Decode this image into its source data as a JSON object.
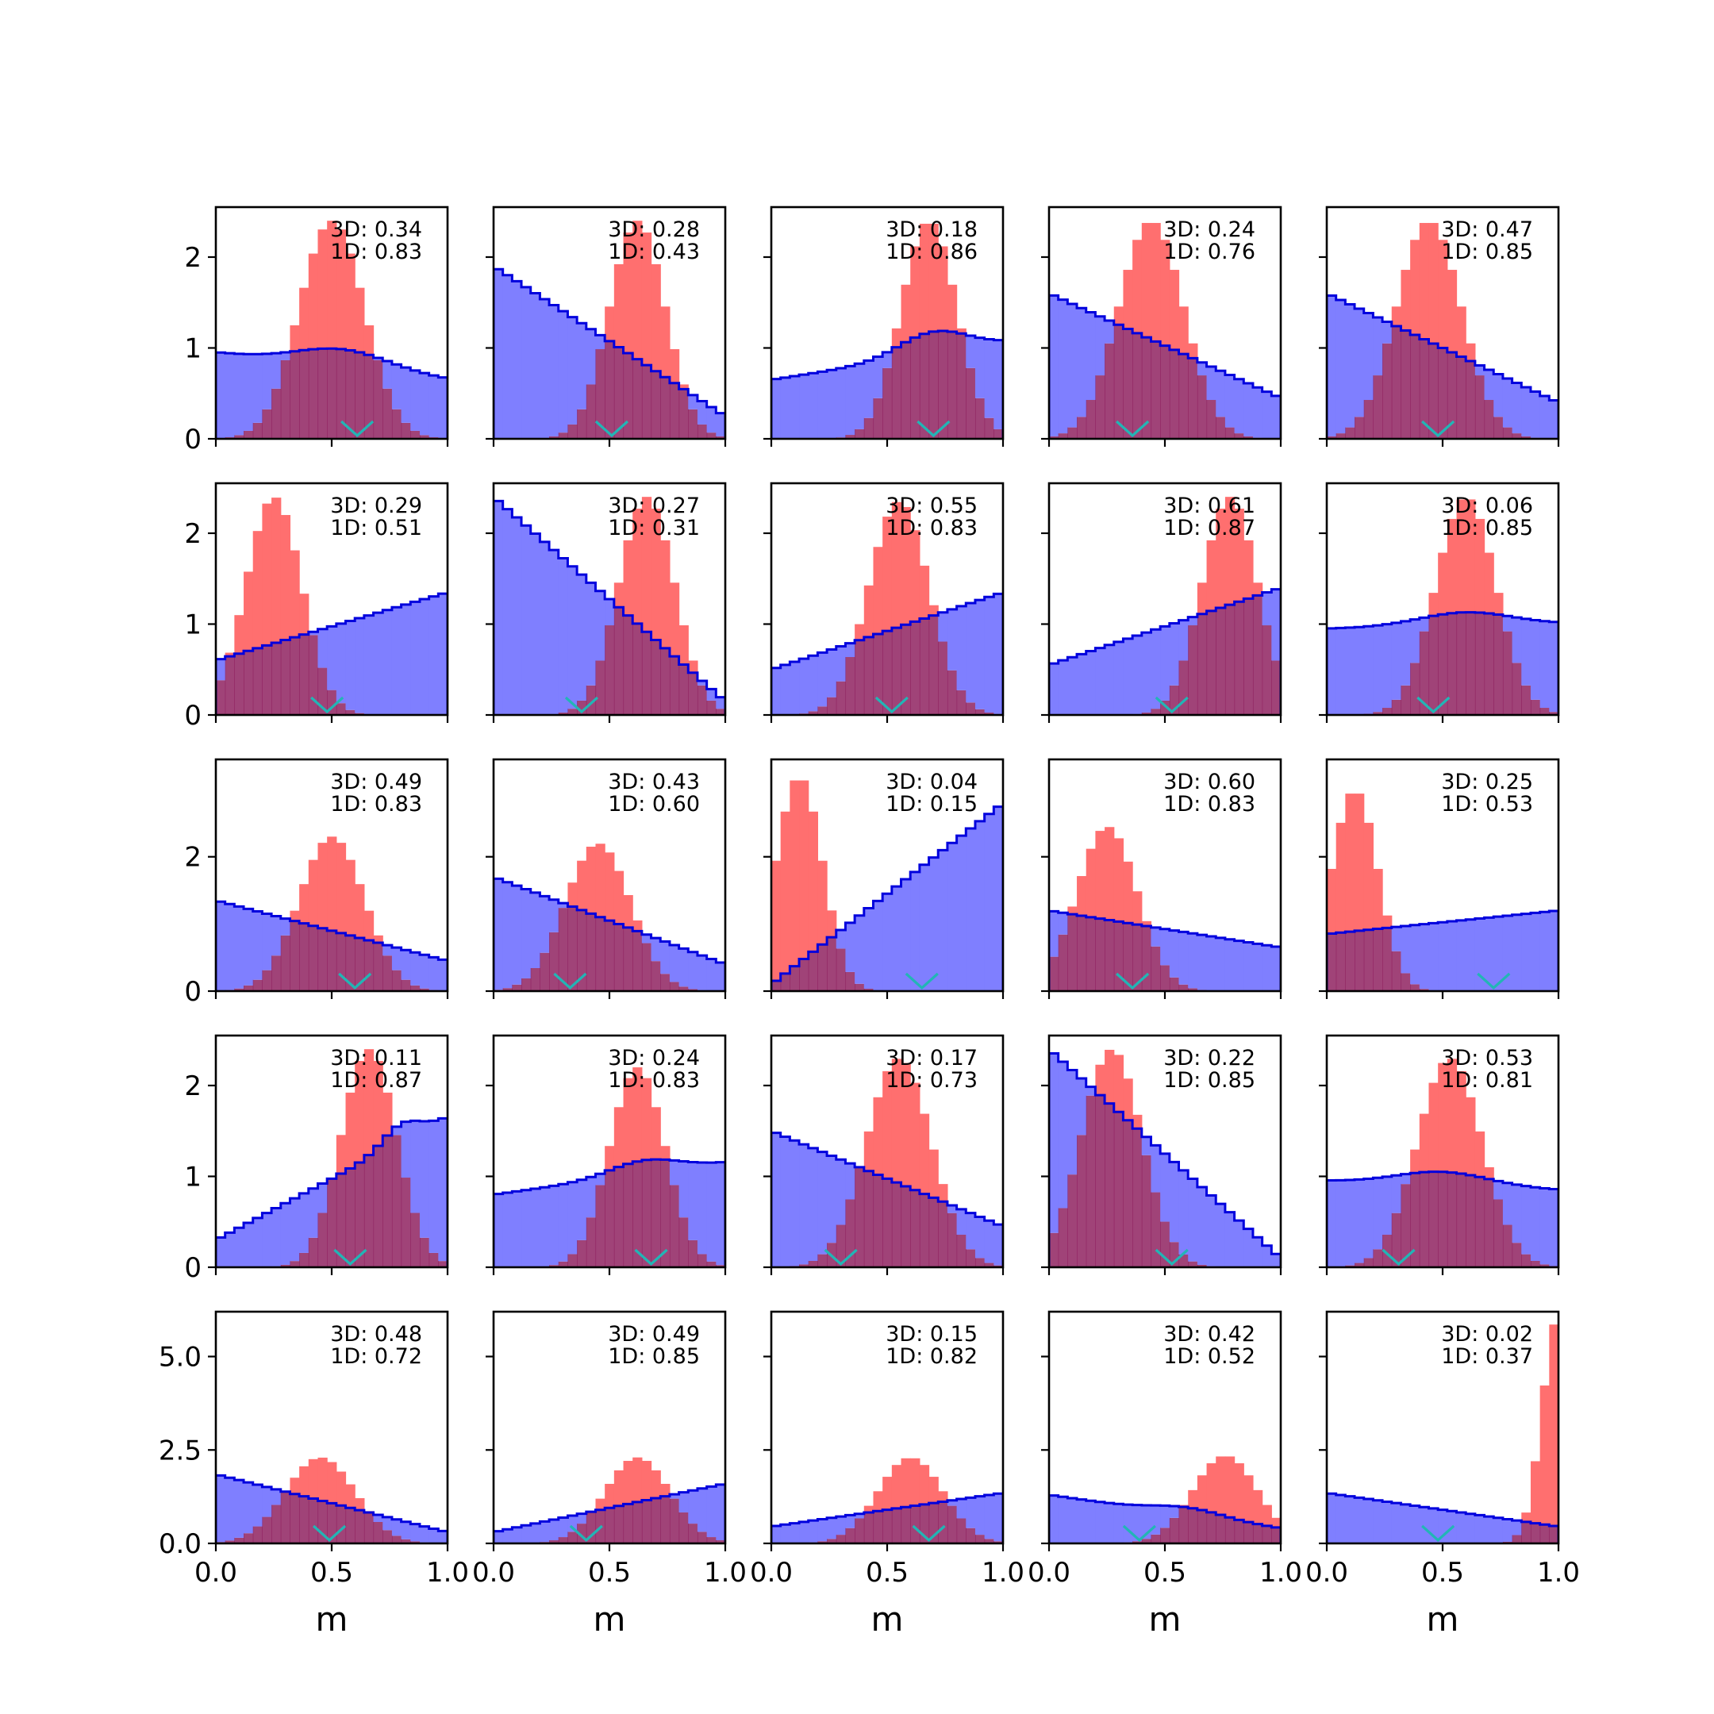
{
  "chart_data": {
    "type": "histogram-grid",
    "rows": 5,
    "cols": 5,
    "xlabel": "m",
    "xlim": [
      0,
      1
    ],
    "xticks": [
      0.0,
      0.5,
      1.0
    ],
    "xtick_labels": [
      "0.0",
      "0.5",
      "1.0"
    ],
    "row_axes": [
      {
        "ylim": [
          0,
          2.55
        ],
        "yticks": [
          0,
          1,
          2
        ],
        "ytick_labels": [
          "0",
          "1",
          "2"
        ]
      },
      {
        "ylim": [
          0,
          2.55
        ],
        "yticks": [
          0,
          1,
          2
        ],
        "ytick_labels": [
          "0",
          "1",
          "2"
        ]
      },
      {
        "ylim": [
          0,
          3.45
        ],
        "yticks": [
          0,
          2
        ],
        "ytick_labels": [
          "0",
          "2"
        ]
      },
      {
        "ylim": [
          0,
          2.55
        ],
        "yticks": [
          0,
          1,
          2
        ],
        "ytick_labels": [
          "0",
          "1",
          "2"
        ]
      },
      {
        "ylim": [
          0,
          6.2
        ],
        "yticks": [
          0.0,
          2.5,
          5.0
        ],
        "ytick_labels": [
          "0.0",
          "2.5",
          "5.0"
        ]
      }
    ],
    "colors": {
      "blue_fill": "#7f7fff",
      "blue_line": "#0000dd",
      "red_fill": "#ff6f6f",
      "overlap": "#8b1a5a",
      "marker": "#22b5b5"
    },
    "panels": [
      {
        "label3d": "3D: 0.34",
        "label1d": "1D: 0.83",
        "marker": 0.61,
        "blue": {
          "a": 0.95,
          "b": 0.65,
          "peak": 0.55,
          "amp": 0.2,
          "width": 0.2
        },
        "red": {
          "mu": 0.5,
          "sigma": 0.14,
          "amp": 2.4
        }
      },
      {
        "label3d": "3D: 0.28",
        "label1d": "1D: 0.43",
        "marker": 0.51,
        "blue": {
          "a": 1.9,
          "b": 0.25,
          "peak": 0.5,
          "amp": 0,
          "width": 0.2
        },
        "red": {
          "mu": 0.62,
          "sigma": 0.12,
          "amp": 2.4
        }
      },
      {
        "label3d": "3D: 0.18",
        "label1d": "1D: 0.86",
        "marker": 0.7,
        "blue": {
          "a": 0.65,
          "b": 1.05,
          "peak": 0.7,
          "amp": 0.25,
          "width": 0.15
        },
        "red": {
          "mu": 0.68,
          "sigma": 0.12,
          "amp": 2.4
        }
      },
      {
        "label3d": "3D: 0.24",
        "label1d": "1D: 0.76",
        "marker": 0.36,
        "blue": {
          "a": 1.6,
          "b": 0.45,
          "peak": 0.5,
          "amp": 0,
          "width": 0.2
        },
        "red": {
          "mu": 0.44,
          "sigma": 0.14,
          "amp": 2.4
        }
      },
      {
        "label3d": "3D: 0.47",
        "label1d": "1D: 0.85",
        "marker": 0.48,
        "blue": {
          "a": 1.6,
          "b": 0.4,
          "peak": 0.5,
          "amp": 0,
          "width": 0.2
        },
        "red": {
          "mu": 0.44,
          "sigma": 0.14,
          "amp": 2.4
        }
      },
      {
        "label3d": "3D: 0.29",
        "label1d": "1D: 0.51",
        "marker": 0.48,
        "blue": {
          "a": 0.6,
          "b": 1.35,
          "peak": 0.5,
          "amp": 0,
          "width": 0.2
        },
        "red": {
          "mu": 0.25,
          "sigma": 0.12,
          "amp": 2.4
        }
      },
      {
        "label3d": "3D: 0.27",
        "label1d": "1D: 0.31",
        "marker": 0.38,
        "blue": {
          "a": 2.4,
          "b": 0.15,
          "peak": 0.5,
          "amp": 0,
          "width": 0.2
        },
        "red": {
          "mu": 0.66,
          "sigma": 0.12,
          "amp": 2.4
        }
      },
      {
        "label3d": "3D: 0.55",
        "label1d": "1D: 0.83",
        "marker": 0.52,
        "blue": {
          "a": 0.5,
          "b": 1.35,
          "peak": 0.5,
          "amp": 0,
          "width": 0.2
        },
        "red": {
          "mu": 0.55,
          "sigma": 0.13,
          "amp": 2.35
        }
      },
      {
        "label3d": "3D: 0.61",
        "label1d": "1D: 0.87",
        "marker": 0.53,
        "blue": {
          "a": 0.55,
          "b": 1.4,
          "peak": 0.5,
          "amp": 0,
          "width": 0.2
        },
        "red": {
          "mu": 0.78,
          "sigma": 0.12,
          "amp": 2.4
        }
      },
      {
        "label3d": "3D: 0.06",
        "label1d": "1D: 0.85",
        "marker": 0.46,
        "blue": {
          "a": 0.95,
          "b": 1.0,
          "peak": 0.6,
          "amp": 0.15,
          "width": 0.2
        },
        "red": {
          "mu": 0.6,
          "sigma": 0.13,
          "amp": 2.4
        }
      },
      {
        "label3d": "3D: 0.49",
        "label1d": "1D: 0.83",
        "marker": 0.6,
        "blue": {
          "a": 1.35,
          "b": 0.45,
          "peak": 0.5,
          "amp": 0,
          "width": 0.2
        },
        "red": {
          "mu": 0.5,
          "sigma": 0.14,
          "amp": 2.3
        }
      },
      {
        "label3d": "3D: 0.43",
        "label1d": "1D: 0.60",
        "marker": 0.33,
        "blue": {
          "a": 1.7,
          "b": 0.4,
          "peak": 0.5,
          "amp": 0,
          "width": 0.2
        },
        "red": {
          "mu": 0.45,
          "sigma": 0.14,
          "amp": 2.2
        }
      },
      {
        "label3d": "3D: 0.04",
        "label1d": "1D: 0.15",
        "marker": 0.65,
        "blue": {
          "a": 0.1,
          "b": 2.8,
          "peak": 0.5,
          "amp": 0,
          "width": 0.2
        },
        "red": {
          "mu": 0.12,
          "sigma": 0.1,
          "amp": 3.2
        }
      },
      {
        "label3d": "3D: 0.60",
        "label1d": "1D: 0.83",
        "marker": 0.36,
        "blue": {
          "a": 1.2,
          "b": 0.65,
          "peak": 0.5,
          "amp": 0,
          "width": 0.2
        },
        "red": {
          "mu": 0.25,
          "sigma": 0.13,
          "amp": 2.45
        }
      },
      {
        "label3d": "3D: 0.25",
        "label1d": "1D: 0.53",
        "marker": 0.72,
        "blue": {
          "a": 0.85,
          "b": 1.2,
          "peak": 0.5,
          "amp": 0,
          "width": 0.2
        },
        "red": {
          "mu": 0.12,
          "sigma": 0.1,
          "amp": 3.0
        }
      },
      {
        "label3d": "3D: 0.11",
        "label1d": "1D: 0.87",
        "marker": 0.58,
        "blue": {
          "a": 0.3,
          "b": 1.65,
          "peak": 0.8,
          "amp": 0.2,
          "width": 0.08
        },
        "red": {
          "mu": 0.66,
          "sigma": 0.12,
          "amp": 2.4
        }
      },
      {
        "label3d": "3D: 0.24",
        "label1d": "1D: 0.83",
        "marker": 0.68,
        "blue": {
          "a": 0.8,
          "b": 1.15,
          "peak": 0.65,
          "amp": 0.15,
          "width": 0.15
        },
        "red": {
          "mu": 0.62,
          "sigma": 0.12,
          "amp": 2.2
        }
      },
      {
        "label3d": "3D: 0.17",
        "label1d": "1D: 0.73",
        "marker": 0.3,
        "blue": {
          "a": 1.5,
          "b": 0.45,
          "peak": 0.5,
          "amp": 0,
          "width": 0.2
        },
        "red": {
          "mu": 0.55,
          "sigma": 0.14,
          "amp": 2.3
        }
      },
      {
        "label3d": "3D: 0.22",
        "label1d": "1D: 0.85",
        "marker": 0.53,
        "blue": {
          "a": 2.4,
          "b": 0.1,
          "peak": 0.5,
          "amp": 0,
          "width": 0.2
        },
        "red": {
          "mu": 0.27,
          "sigma": 0.13,
          "amp": 2.4
        }
      },
      {
        "label3d": "3D: 0.53",
        "label1d": "1D: 0.81",
        "marker": 0.31,
        "blue": {
          "a": 0.95,
          "b": 0.85,
          "peak": 0.5,
          "amp": 0.15,
          "width": 0.2
        },
        "red": {
          "mu": 0.53,
          "sigma": 0.14,
          "amp": 2.3
        }
      },
      {
        "label3d": "3D: 0.48",
        "label1d": "1D: 0.72",
        "marker": 0.49,
        "blue": {
          "a": 1.85,
          "b": 0.3,
          "peak": 0.5,
          "amp": 0,
          "width": 0.2
        },
        "red": {
          "mu": 0.45,
          "sigma": 0.15,
          "amp": 2.3
        }
      },
      {
        "label3d": "3D: 0.49",
        "label1d": "1D: 0.85",
        "marker": 0.4,
        "blue": {
          "a": 0.3,
          "b": 1.6,
          "peak": 0.5,
          "amp": 0,
          "width": 0.2
        },
        "red": {
          "mu": 0.62,
          "sigma": 0.14,
          "amp": 2.3
        }
      },
      {
        "label3d": "3D: 0.15",
        "label1d": "1D: 0.82",
        "marker": 0.68,
        "blue": {
          "a": 0.45,
          "b": 1.35,
          "peak": 0.5,
          "amp": 0,
          "width": 0.2
        },
        "red": {
          "mu": 0.6,
          "sigma": 0.14,
          "amp": 2.3
        }
      },
      {
        "label3d": "3D: 0.42",
        "label1d": "1D: 0.52",
        "marker": 0.39,
        "blue": {
          "a": 1.3,
          "b": 0.4,
          "peak": 0.6,
          "amp": 0.2,
          "width": 0.15
        },
        "red": {
          "mu": 0.76,
          "sigma": 0.14,
          "amp": 2.35
        }
      },
      {
        "label3d": "3D: 0.02",
        "label1d": "1D: 0.37",
        "marker": 0.48,
        "blue": {
          "a": 1.35,
          "b": 0.45,
          "peak": 0.5,
          "amp": 0,
          "width": 0.2
        },
        "red": {
          "mu": 1.0,
          "sigma": 0.07,
          "amp": 6.1
        }
      }
    ]
  }
}
